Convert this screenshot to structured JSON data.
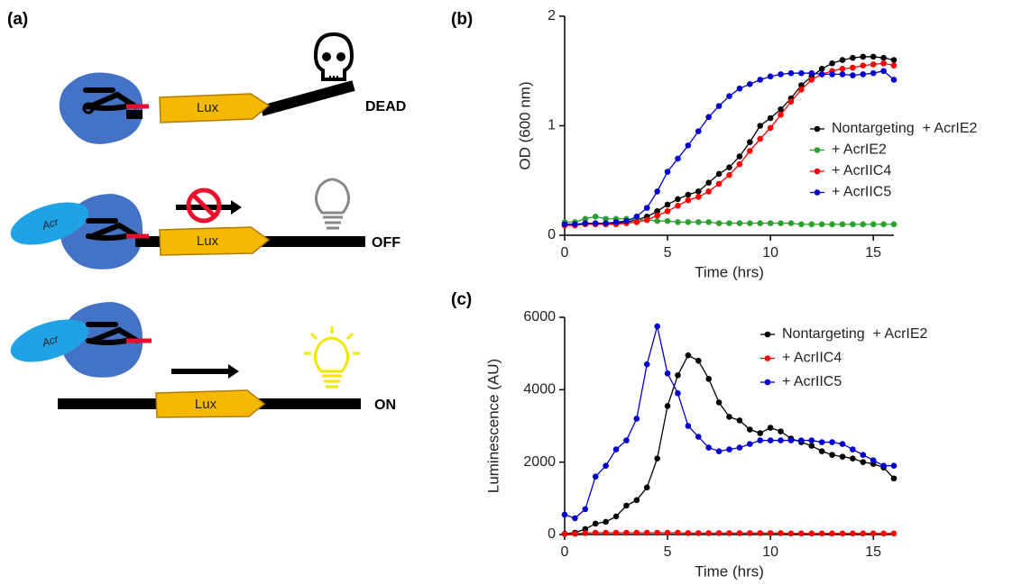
{
  "diagram": {
    "label": "(a)",
    "rows": [
      {
        "gene": "Lux",
        "state": "DEAD"
      },
      {
        "gene": "Lux",
        "state": "OFF"
      },
      {
        "gene": "Lux",
        "state": "ON"
      }
    ],
    "acr": [
      "Acr",
      "Acr"
    ]
  },
  "chart_data": [
    {
      "type": "line",
      "label": "(b)",
      "xlabel": "Time (hrs)",
      "ylabel": "OD (600 nm)",
      "xlim": [
        0,
        16
      ],
      "xticks": [
        0,
        5,
        10,
        15
      ],
      "ylim": [
        0,
        2
      ],
      "yticks": [
        0,
        1,
        2
      ],
      "x": [
        0,
        0.5,
        1,
        1.5,
        2,
        2.5,
        3,
        3.5,
        4,
        4.5,
        5,
        5.5,
        6,
        6.5,
        7,
        7.5,
        8,
        8.5,
        9,
        9.5,
        10,
        10.5,
        11,
        11.5,
        12,
        12.5,
        13,
        13.5,
        14,
        14.5,
        15,
        15.5,
        16
      ],
      "series": [
        {
          "name": "Nontargeting  + AcrIE2",
          "color": "#000000",
          "values": [
            0.1,
            0.1,
            0.1,
            0.1,
            0.1,
            0.11,
            0.12,
            0.14,
            0.17,
            0.22,
            0.28,
            0.33,
            0.37,
            0.4,
            0.48,
            0.56,
            0.62,
            0.72,
            0.85,
            1.0,
            1.07,
            1.15,
            1.25,
            1.37,
            1.45,
            1.52,
            1.57,
            1.6,
            1.62,
            1.63,
            1.63,
            1.62,
            1.6
          ]
        },
        {
          "name": "+ AcrIE2",
          "color": "#2ca02c",
          "values": [
            0.12,
            0.12,
            0.15,
            0.17,
            0.15,
            0.15,
            0.15,
            0.14,
            0.14,
            0.13,
            0.13,
            0.12,
            0.12,
            0.12,
            0.12,
            0.11,
            0.11,
            0.11,
            0.11,
            0.11,
            0.11,
            0.11,
            0.11,
            0.1,
            0.1,
            0.1,
            0.1,
            0.1,
            0.1,
            0.1,
            0.1,
            0.1,
            0.1
          ]
        },
        {
          "name": "+ AcrIIC4",
          "color": "#ff0000",
          "values": [
            0.09,
            0.09,
            0.1,
            0.1,
            0.1,
            0.1,
            0.11,
            0.12,
            0.14,
            0.18,
            0.22,
            0.27,
            0.32,
            0.35,
            0.4,
            0.47,
            0.55,
            0.65,
            0.77,
            0.88,
            0.98,
            1.1,
            1.22,
            1.33,
            1.42,
            1.47,
            1.5,
            1.52,
            1.53,
            1.55,
            1.56,
            1.57,
            1.55
          ]
        },
        {
          "name": "+ AcrIIC5",
          "color": "#0000cc",
          "values": [
            0.1,
            0.1,
            0.11,
            0.11,
            0.11,
            0.12,
            0.13,
            0.17,
            0.25,
            0.4,
            0.58,
            0.7,
            0.82,
            0.95,
            1.08,
            1.18,
            1.27,
            1.34,
            1.38,
            1.42,
            1.45,
            1.47,
            1.48,
            1.48,
            1.48,
            1.47,
            1.47,
            1.47,
            1.46,
            1.47,
            1.48,
            1.5,
            1.42
          ]
        }
      ]
    },
    {
      "type": "line",
      "label": "(c)",
      "xlabel": "Time (hrs)",
      "ylabel": "Luminescence (AU)",
      "xlim": [
        0,
        16
      ],
      "xticks": [
        0,
        5,
        10,
        15
      ],
      "ylim": [
        0,
        6000
      ],
      "yticks": [
        0,
        2000,
        4000,
        6000
      ],
      "x": [
        0,
        0.5,
        1,
        1.5,
        2,
        2.5,
        3,
        3.5,
        4,
        4.5,
        5,
        5.5,
        6,
        6.5,
        7,
        7.5,
        8,
        8.5,
        9,
        9.5,
        10,
        10.5,
        11,
        11.5,
        12,
        12.5,
        13,
        13.5,
        14,
        14.5,
        15,
        15.5,
        16
      ],
      "series": [
        {
          "name": "Nontargeting  + AcrIE2",
          "color": "#000000",
          "values": [
            20,
            50,
            150,
            300,
            350,
            500,
            800,
            950,
            1300,
            2100,
            3550,
            4400,
            4950,
            4800,
            4300,
            3650,
            3250,
            3150,
            2900,
            2800,
            2950,
            2850,
            2650,
            2550,
            2450,
            2300,
            2200,
            2150,
            2100,
            2000,
            1950,
            1850,
            1550
          ]
        },
        {
          "name": "+ AcrIIC4",
          "color": "#ff0000",
          "values": [
            10,
            20,
            40,
            50,
            50,
            50,
            50,
            50,
            50,
            50,
            50,
            50,
            40,
            40,
            40,
            40,
            40,
            40,
            40,
            40,
            40,
            40,
            30,
            30,
            30,
            30,
            30,
            30,
            30,
            30,
            30,
            30,
            30
          ]
        },
        {
          "name": "+ AcrIIC5",
          "color": "#0000cc",
          "values": [
            550,
            450,
            700,
            1600,
            1900,
            2350,
            2600,
            3200,
            4700,
            5750,
            4450,
            3900,
            3000,
            2700,
            2400,
            2300,
            2350,
            2400,
            2500,
            2600,
            2600,
            2600,
            2600,
            2600,
            2600,
            2550,
            2550,
            2500,
            2350,
            2200,
            2050,
            1900,
            1900
          ]
        }
      ]
    }
  ]
}
